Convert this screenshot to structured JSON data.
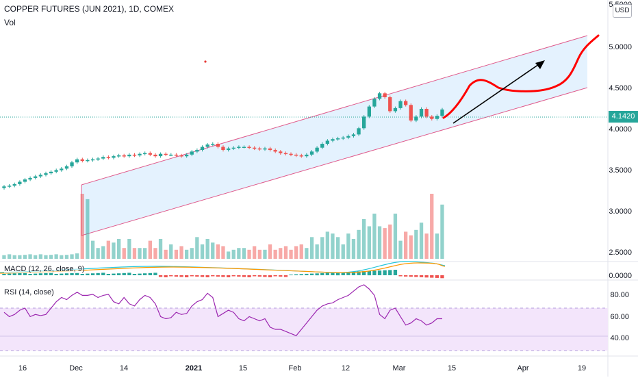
{
  "header": {
    "title": "COPPER FUTURES (JUN 2021), 1D, COMEX",
    "vol_label": "Vol",
    "currency": "USD"
  },
  "indicators": {
    "macd_label": "MACD (12, 26, close, 9)",
    "rsi_label": "RSI (14, close)"
  },
  "last_price": "4.1420",
  "colors": {
    "up": "#26a69a",
    "down": "#ef5350",
    "channel": "#e05b8c",
    "projection": "#ff0000",
    "rsi": "#9c27b0"
  },
  "chart_data": [
    {
      "type": "candlestick",
      "name": "price",
      "x_labels": [
        "16",
        "Dec",
        "14",
        "2021",
        "15",
        "Feb",
        "12",
        "Mar",
        "15",
        "Apr",
        "19"
      ],
      "y_ticks": [
        "5.5000",
        "5.0000",
        "4.5000",
        "4.0000",
        "3.5000",
        "3.0000",
        "2.5000"
      ],
      "ylim": [
        2.4,
        5.55
      ],
      "close_series": [
        3.15,
        3.16,
        3.18,
        3.21,
        3.24,
        3.26,
        3.28,
        3.3,
        3.32,
        3.34,
        3.36,
        3.38,
        3.41,
        3.46,
        3.5,
        3.48,
        3.49,
        3.5,
        3.51,
        3.53,
        3.52,
        3.54,
        3.55,
        3.54,
        3.56,
        3.55,
        3.57,
        3.58,
        3.56,
        3.54,
        3.57,
        3.56,
        3.56,
        3.55,
        3.54,
        3.56,
        3.6,
        3.62,
        3.66,
        3.69,
        3.7,
        3.66,
        3.62,
        3.64,
        3.65,
        3.66,
        3.66,
        3.65,
        3.64,
        3.63,
        3.64,
        3.62,
        3.6,
        3.58,
        3.57,
        3.56,
        3.55,
        3.54,
        3.56,
        3.6,
        3.65,
        3.7,
        3.74,
        3.76,
        3.77,
        3.78,
        3.8,
        3.82,
        3.9,
        4.05,
        4.18,
        4.28,
        4.35,
        4.3,
        4.12,
        4.16,
        4.25,
        4.2,
        4.0,
        4.05,
        4.15,
        4.05,
        4.02,
        4.06,
        4.142
      ],
      "volume_series": [
        0.2,
        0.25,
        0.2,
        0.2,
        0.22,
        0.25,
        0.2,
        0.25,
        0.2,
        0.22,
        0.25,
        0.2,
        0.22,
        0.25,
        0.3,
        3.6,
        3.3,
        1.0,
        0.6,
        0.7,
        1.0,
        0.9,
        1.1,
        0.6,
        1.1,
        0.6,
        0.6,
        0.6,
        1.0,
        0.6,
        1.1,
        0.5,
        0.8,
        0.5,
        0.7,
        0.5,
        0.6,
        1.2,
        0.8,
        1.1,
        0.9,
        0.8,
        0.7,
        0.4,
        0.5,
        0.6,
        0.6,
        0.5,
        0.7,
        0.5,
        0.5,
        0.8,
        0.5,
        0.6,
        0.7,
        0.5,
        0.7,
        0.8,
        0.6,
        1.2,
        0.8,
        1.2,
        1.5,
        1.4,
        1.2,
        0.8,
        1.4,
        1.1,
        1.6,
        2.2,
        1.8,
        2.5,
        1.8,
        1.7,
        1.9,
        2.5,
        1.0,
        1.5,
        1.3,
        1.6,
        2.0,
        1.4,
        3.6,
        1.4,
        3.0
      ]
    },
    {
      "type": "line",
      "name": "macd",
      "y_ticks": [
        "0.0000"
      ]
    },
    {
      "type": "line",
      "name": "rsi",
      "y_ticks": [
        "80.00",
        "60.00",
        "40.00"
      ],
      "ylim": [
        30,
        90
      ],
      "band": [
        30,
        70
      ],
      "values": [
        66,
        62,
        64,
        68,
        70,
        62,
        64,
        63,
        64,
        70,
        76,
        80,
        78,
        82,
        85,
        82,
        82,
        83,
        80,
        82,
        83,
        76,
        74,
        80,
        74,
        72,
        78,
        82,
        80,
        74,
        62,
        60,
        61,
        66,
        64,
        65,
        72,
        76,
        78,
        84,
        80,
        62,
        65,
        68,
        66,
        60,
        58,
        62,
        60,
        58,
        60,
        52,
        50,
        50,
        48,
        46,
        44,
        50,
        56,
        62,
        68,
        72,
        74,
        75,
        78,
        80,
        82,
        86,
        90,
        92,
        88,
        82,
        64,
        60,
        68,
        70,
        62,
        54,
        56,
        60,
        58,
        54,
        56,
        60,
        60
      ]
    }
  ]
}
